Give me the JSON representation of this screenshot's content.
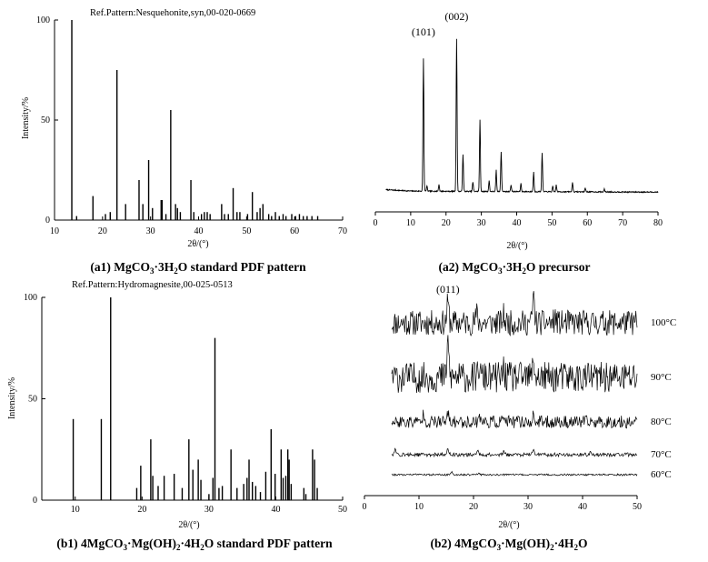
{
  "chart_data": [
    {
      "id": "a1",
      "type": "bar",
      "title": "Ref.Pattern:Nesquehonite,syn,00-020-0669",
      "caption": [
        "(a1) MgCO",
        "3",
        "·3H",
        "2",
        "O standard PDF pattern"
      ],
      "xlabel": "2θ/(°)",
      "ylabel": "Intensity/%",
      "xlim": [
        10,
        70
      ],
      "ylim": [
        0,
        100
      ],
      "xticks": [
        10,
        20,
        30,
        40,
        50,
        60,
        70
      ],
      "yticks": [
        0,
        50,
        100
      ],
      "peaks": [
        [
          13.6,
          100
        ],
        [
          14.6,
          2
        ],
        [
          18.0,
          12
        ],
        [
          20.6,
          3
        ],
        [
          21.6,
          4
        ],
        [
          23.0,
          75
        ],
        [
          24.8,
          8
        ],
        [
          27.6,
          20
        ],
        [
          28.4,
          8
        ],
        [
          29.6,
          30
        ],
        [
          30.4,
          6
        ],
        [
          32.2,
          10
        ],
        [
          32.4,
          10
        ],
        [
          33.2,
          3
        ],
        [
          34.2,
          55
        ],
        [
          35.2,
          8
        ],
        [
          35.6,
          6
        ],
        [
          36.2,
          4
        ],
        [
          38.4,
          20
        ],
        [
          39.0,
          4
        ],
        [
          40.6,
          3
        ],
        [
          41.2,
          4
        ],
        [
          41.8,
          4
        ],
        [
          42.4,
          3
        ],
        [
          44.8,
          8
        ],
        [
          45.4,
          3
        ],
        [
          46.2,
          3
        ],
        [
          47.2,
          16
        ],
        [
          48.0,
          4
        ],
        [
          48.6,
          4
        ],
        [
          50.2,
          3
        ],
        [
          51.2,
          14
        ],
        [
          52.2,
          4
        ],
        [
          52.8,
          6
        ],
        [
          53.4,
          8
        ],
        [
          54.6,
          3
        ],
        [
          55.2,
          2
        ],
        [
          56.0,
          4
        ],
        [
          56.8,
          2
        ],
        [
          57.6,
          3
        ],
        [
          58.2,
          2
        ],
        [
          59.4,
          3
        ],
        [
          60.2,
          2
        ],
        [
          61.0,
          3
        ],
        [
          61.8,
          2
        ],
        [
          62.6,
          2
        ],
        [
          63.6,
          2
        ],
        [
          64.8,
          2
        ]
      ]
    },
    {
      "id": "a2",
      "type": "line",
      "caption": [
        "(a2) MgCO",
        "3",
        "·3H",
        "2",
        "O precursor"
      ],
      "xlabel": "2θ/(°)",
      "ylabel": "",
      "xlim": [
        0,
        80
      ],
      "xticks": [
        0,
        10,
        20,
        30,
        40,
        50,
        60,
        70,
        80
      ],
      "annotations": [
        {
          "label": "(101)",
          "x": 13.6
        },
        {
          "label": "(002)",
          "x": 23.0
        }
      ],
      "baseline": [
        [
          3,
          3.0
        ],
        [
          10,
          2.0
        ],
        [
          20,
          1.8
        ],
        [
          40,
          1.6
        ],
        [
          60,
          1.4
        ],
        [
          80,
          1.2
        ]
      ],
      "peaks": [
        [
          13.6,
          100
        ],
        [
          14.6,
          4
        ],
        [
          18.0,
          5
        ],
        [
          23.0,
          115
        ],
        [
          24.8,
          28
        ],
        [
          27.6,
          7
        ],
        [
          29.6,
          54
        ],
        [
          32.2,
          8
        ],
        [
          34.2,
          16
        ],
        [
          35.6,
          30
        ],
        [
          38.4,
          5
        ],
        [
          41.2,
          6
        ],
        [
          44.8,
          15
        ],
        [
          47.2,
          29
        ],
        [
          50.2,
          4
        ],
        [
          51.2,
          5
        ],
        [
          55.8,
          7
        ],
        [
          59.4,
          3
        ],
        [
          64.8,
          2
        ]
      ],
      "ymax": 130
    },
    {
      "id": "b1",
      "type": "bar",
      "title": "Ref.Pattern:Hydromagnesite,00-025-0513",
      "caption": [
        "(b1) 4MgCO",
        "3",
        "·Mg(OH)",
        "2",
        "·4H",
        "2",
        "O standard PDF pattern"
      ],
      "xlabel": "2θ/(°)",
      "ylabel": "Intensity/%",
      "xlim": [
        5,
        50
      ],
      "ylim": [
        0,
        100
      ],
      "xticks": [
        10,
        20,
        30,
        40,
        50
      ],
      "yticks": [
        0,
        50,
        100
      ],
      "peaks": [
        [
          9.7,
          40
        ],
        [
          13.9,
          40
        ],
        [
          15.3,
          100
        ],
        [
          19.2,
          6
        ],
        [
          19.8,
          17
        ],
        [
          21.3,
          30
        ],
        [
          21.6,
          12
        ],
        [
          22.4,
          7
        ],
        [
          23.3,
          12
        ],
        [
          24.8,
          13
        ],
        [
          26.0,
          6
        ],
        [
          27.0,
          30
        ],
        [
          27.6,
          15
        ],
        [
          28.4,
          20
        ],
        [
          28.8,
          10
        ],
        [
          30.0,
          3
        ],
        [
          30.6,
          11
        ],
        [
          30.9,
          80
        ],
        [
          31.5,
          6
        ],
        [
          32.0,
          7
        ],
        [
          33.3,
          25
        ],
        [
          34.2,
          6
        ],
        [
          35.2,
          8
        ],
        [
          35.7,
          11
        ],
        [
          36.0,
          20
        ],
        [
          36.5,
          9
        ],
        [
          37.0,
          7
        ],
        [
          37.7,
          4
        ],
        [
          38.5,
          14
        ],
        [
          39.3,
          35
        ],
        [
          39.9,
          13
        ],
        [
          40.8,
          25
        ],
        [
          41.1,
          11
        ],
        [
          41.5,
          12
        ],
        [
          41.8,
          25
        ],
        [
          42.0,
          20
        ],
        [
          42.3,
          8
        ],
        [
          44.2,
          6
        ],
        [
          44.5,
          3
        ],
        [
          45.5,
          25
        ],
        [
          45.8,
          20
        ],
        [
          46.2,
          6
        ]
      ]
    },
    {
      "id": "b2",
      "type": "line",
      "caption": [
        "(b2) 4MgCO",
        "3",
        "·Mg(OH)",
        "2",
        "·4H",
        "2",
        "O"
      ],
      "xlabel": "2θ/(°)",
      "ylabel": "",
      "xlim": [
        0,
        50
      ],
      "xticks": [
        0,
        10,
        20,
        30,
        40,
        50
      ],
      "annotations": [
        {
          "label": "(011)",
          "x": 15.3
        }
      ],
      "series": [
        {
          "name": "100°C",
          "offset": 175,
          "noise": 14,
          "peaks": [
            [
              15.3,
              22
            ],
            [
              20.6,
              10
            ],
            [
              25.5,
              8
            ],
            [
              31.0,
              28
            ],
            [
              35.0,
              6
            ]
          ]
        },
        {
          "name": "90°C",
          "offset": 115,
          "noise": 17,
          "peaks": [
            [
              15.3,
              38
            ],
            [
              21.0,
              12
            ],
            [
              25.5,
              10
            ],
            [
              31.0,
              20
            ]
          ]
        },
        {
          "name": "80°C",
          "offset": 66,
          "noise": 7,
          "peaks": [
            [
              10.9,
              10
            ],
            [
              15.3,
              8
            ],
            [
              21.0,
              8
            ],
            [
              25.5,
              6
            ],
            [
              31.0,
              6
            ]
          ]
        },
        {
          "name": "70°C",
          "offset": 30,
          "noise": 2,
          "peaks": [
            [
              5.6,
              5
            ],
            [
              15.3,
              6
            ],
            [
              20.8,
              4
            ],
            [
              25.5,
              3
            ],
            [
              31.0,
              6
            ],
            [
              41.5,
              3
            ]
          ]
        },
        {
          "name": "60°C",
          "offset": 8,
          "noise": 1,
          "peaks": [
            [
              16.0,
              3
            ],
            [
              21.0,
              1.5
            ]
          ]
        }
      ]
    }
  ]
}
